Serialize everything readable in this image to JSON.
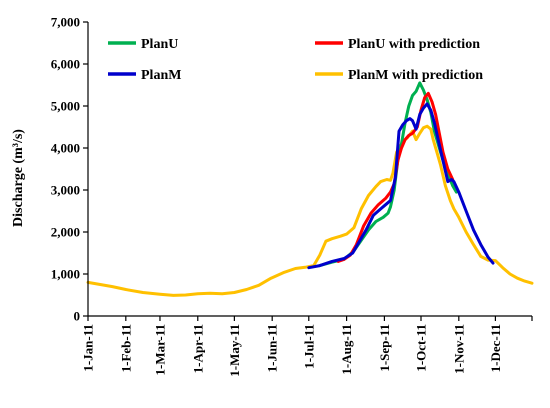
{
  "chart_data": {
    "type": "line",
    "title": "",
    "xlabel": "",
    "ylabel": "Discharge  (m³/s)",
    "ylim": [
      0,
      7000
    ],
    "y_ticks": [
      0,
      1000,
      2000,
      3000,
      4000,
      5000,
      6000,
      7000
    ],
    "y_tick_labels": [
      "0",
      "1,000",
      "2,000",
      "3,000",
      "4,000",
      "5,000",
      "6,000",
      "7,000"
    ],
    "x_tick_labels": [
      "1-Jan-11",
      "1-Feb-11",
      "1-Mar-11",
      "1-Apr-11",
      "1-May-11",
      "1-Jun-11",
      "1-Jul-11",
      "1-Aug-11",
      "1-Sep-11",
      "1-Oct-11",
      "1-Nov-11",
      "1-Dec-11"
    ],
    "x_tick_days": [
      0,
      31,
      59,
      90,
      120,
      151,
      181,
      212,
      243,
      273,
      304,
      334
    ],
    "x_range_days": [
      0,
      364
    ],
    "grid": false,
    "legend": "top, two columns",
    "series": [
      {
        "name": "PlanM with prediction",
        "color": "#FFC000",
        "points": [
          [
            0,
            800
          ],
          [
            10,
            750
          ],
          [
            20,
            700
          ],
          [
            31,
            630
          ],
          [
            45,
            560
          ],
          [
            59,
            520
          ],
          [
            70,
            490
          ],
          [
            80,
            500
          ],
          [
            90,
            530
          ],
          [
            100,
            540
          ],
          [
            110,
            530
          ],
          [
            120,
            560
          ],
          [
            130,
            630
          ],
          [
            140,
            730
          ],
          [
            150,
            900
          ],
          [
            160,
            1030
          ],
          [
            170,
            1130
          ],
          [
            178,
            1160
          ],
          [
            185,
            1200
          ],
          [
            190,
            1450
          ],
          [
            195,
            1780
          ],
          [
            200,
            1840
          ],
          [
            207,
            1900
          ],
          [
            212,
            1950
          ],
          [
            218,
            2100
          ],
          [
            224,
            2550
          ],
          [
            230,
            2870
          ],
          [
            236,
            3080
          ],
          [
            240,
            3200
          ],
          [
            245,
            3250
          ],
          [
            248,
            3230
          ],
          [
            250,
            3400
          ],
          [
            253,
            3900
          ],
          [
            258,
            4150
          ],
          [
            262,
            4250
          ],
          [
            266,
            4400
          ],
          [
            269,
            4200
          ],
          [
            272,
            4350
          ],
          [
            275,
            4480
          ],
          [
            278,
            4520
          ],
          [
            281,
            4450
          ],
          [
            283,
            4200
          ],
          [
            286,
            3900
          ],
          [
            289,
            3600
          ],
          [
            293,
            3100
          ],
          [
            297,
            2750
          ],
          [
            300,
            2550
          ],
          [
            304,
            2350
          ],
          [
            310,
            2000
          ],
          [
            316,
            1700
          ],
          [
            322,
            1420
          ],
          [
            328,
            1330
          ],
          [
            334,
            1320
          ],
          [
            340,
            1150
          ],
          [
            346,
            1000
          ],
          [
            352,
            900
          ],
          [
            358,
            830
          ],
          [
            364,
            780
          ]
        ]
      },
      {
        "name": "PlanU",
        "color": "#00B050",
        "points": [
          [
            190,
            1200
          ],
          [
            200,
            1280
          ],
          [
            210,
            1350
          ],
          [
            218,
            1550
          ],
          [
            224,
            1800
          ],
          [
            230,
            2050
          ],
          [
            236,
            2250
          ],
          [
            242,
            2350
          ],
          [
            246,
            2450
          ],
          [
            248,
            2600
          ],
          [
            251,
            3000
          ],
          [
            254,
            3700
          ],
          [
            257,
            4100
          ],
          [
            260,
            4600
          ],
          [
            263,
            5000
          ],
          [
            266,
            5250
          ],
          [
            269,
            5350
          ],
          [
            272,
            5550
          ],
          [
            275,
            5380
          ],
          [
            278,
            5150
          ],
          [
            281,
            4850
          ],
          [
            284,
            4400
          ],
          [
            287,
            4100
          ],
          [
            291,
            3700
          ],
          [
            295,
            3400
          ],
          [
            299,
            3100
          ],
          [
            302,
            2950
          ]
        ]
      },
      {
        "name": "PlanU with prediction",
        "color": "#FF0000",
        "points": [
          [
            205,
            1300
          ],
          [
            210,
            1350
          ],
          [
            215,
            1450
          ],
          [
            220,
            1700
          ],
          [
            226,
            2150
          ],
          [
            232,
            2450
          ],
          [
            238,
            2650
          ],
          [
            244,
            2800
          ],
          [
            248,
            2950
          ],
          [
            251,
            3150
          ],
          [
            254,
            3700
          ],
          [
            257,
            4000
          ],
          [
            260,
            4200
          ],
          [
            263,
            4300
          ],
          [
            266,
            4350
          ],
          [
            270,
            4500
          ],
          [
            273,
            4900
          ],
          [
            276,
            5200
          ],
          [
            279,
            5300
          ],
          [
            282,
            5100
          ],
          [
            285,
            4800
          ],
          [
            288,
            4350
          ],
          [
            291,
            3900
          ],
          [
            295,
            3500
          ],
          [
            299,
            3250
          ]
        ]
      },
      {
        "name": "PlanM",
        "color": "#0000CC",
        "points": [
          [
            181,
            1150
          ],
          [
            190,
            1200
          ],
          [
            200,
            1300
          ],
          [
            210,
            1370
          ],
          [
            217,
            1500
          ],
          [
            222,
            1750
          ],
          [
            228,
            2050
          ],
          [
            234,
            2400
          ],
          [
            240,
            2550
          ],
          [
            244,
            2650
          ],
          [
            248,
            2750
          ],
          [
            252,
            3300
          ],
          [
            255,
            4400
          ],
          [
            258,
            4550
          ],
          [
            261,
            4650
          ],
          [
            264,
            4700
          ],
          [
            266,
            4650
          ],
          [
            269,
            4450
          ],
          [
            272,
            4800
          ],
          [
            275,
            4950
          ],
          [
            278,
            5050
          ],
          [
            281,
            4900
          ],
          [
            284,
            4600
          ],
          [
            287,
            4200
          ],
          [
            291,
            3700
          ],
          [
            295,
            3200
          ],
          [
            298,
            3250
          ],
          [
            300,
            3200
          ],
          [
            304,
            2950
          ],
          [
            310,
            2500
          ],
          [
            316,
            2050
          ],
          [
            322,
            1700
          ],
          [
            328,
            1400
          ],
          [
            332,
            1260
          ]
        ]
      }
    ],
    "legend_entries": [
      {
        "name": "PlanU",
        "color": "#00B050"
      },
      {
        "name": "PlanU with prediction",
        "color": "#FF0000"
      },
      {
        "name": "PlanM",
        "color": "#0000CC"
      },
      {
        "name": "PlanM with prediction",
        "color": "#FFC000"
      }
    ]
  }
}
